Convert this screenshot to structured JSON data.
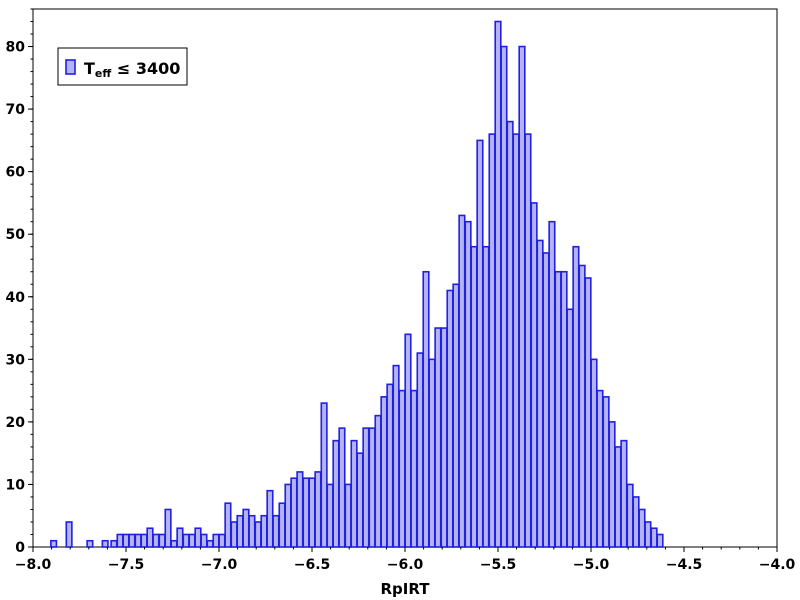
{
  "chart_data": {
    "type": "bar",
    "title": "",
    "xlabel": "RpIRT",
    "ylabel": "",
    "xlim": [
      -8.0,
      -4.0
    ],
    "ylim": [
      0,
      86
    ],
    "bin_width": 0.03,
    "x_ticks": [
      -8.0,
      -7.5,
      -7.0,
      -6.5,
      -6.0,
      -5.5,
      -5.0,
      -4.5,
      -4.0
    ],
    "x_tick_labels": [
      "−8.0",
      "−7.5",
      "−7.0",
      "−6.5",
      "−6.0",
      "−5.5",
      "−5.0",
      "−4.5",
      "−4.0"
    ],
    "y_ticks": [
      0,
      10,
      20,
      30,
      40,
      50,
      60,
      70,
      80
    ],
    "y_tick_labels": [
      "0",
      "10",
      "20",
      "30",
      "40",
      "50",
      "60",
      "70",
      "80"
    ],
    "grid": false,
    "legend_position": "top-left",
    "legend": {
      "main": "T",
      "sub": "eff",
      "rest": " ≤ 3400"
    },
    "colors": {
      "fill": "#b3b3f5",
      "edge": "#2020e0"
    },
    "series": [
      {
        "name": "Teff ≤ 3400",
        "values": [
          [
            -7.889,
            1
          ],
          [
            -7.806,
            4
          ],
          [
            -7.694,
            1
          ],
          [
            -7.612,
            1
          ],
          [
            -7.565,
            1
          ],
          [
            -7.532,
            2
          ],
          [
            -7.5,
            2
          ],
          [
            -7.468,
            2
          ],
          [
            -7.435,
            2
          ],
          [
            -7.403,
            2
          ],
          [
            -7.371,
            3
          ],
          [
            -7.339,
            2
          ],
          [
            -7.306,
            2
          ],
          [
            -7.274,
            6
          ],
          [
            -7.242,
            1
          ],
          [
            -7.21,
            3
          ],
          [
            -7.177,
            2
          ],
          [
            -7.145,
            2
          ],
          [
            -7.113,
            3
          ],
          [
            -7.081,
            2
          ],
          [
            -7.048,
            1
          ],
          [
            -7.016,
            2
          ],
          [
            -6.984,
            2
          ],
          [
            -6.952,
            7
          ],
          [
            -6.919,
            4
          ],
          [
            -6.887,
            5
          ],
          [
            -6.855,
            6
          ],
          [
            -6.823,
            5
          ],
          [
            -6.79,
            4
          ],
          [
            -6.758,
            5
          ],
          [
            -6.726,
            9
          ],
          [
            -6.694,
            5
          ],
          [
            -6.661,
            7
          ],
          [
            -6.629,
            10
          ],
          [
            -6.597,
            11
          ],
          [
            -6.565,
            12
          ],
          [
            -6.532,
            11
          ],
          [
            -6.5,
            11
          ],
          [
            -6.468,
            12
          ],
          [
            -6.435,
            23
          ],
          [
            -6.403,
            10
          ],
          [
            -6.371,
            17
          ],
          [
            -6.339,
            19
          ],
          [
            -6.306,
            10
          ],
          [
            -6.274,
            17
          ],
          [
            -6.242,
            15
          ],
          [
            -6.21,
            19
          ],
          [
            -6.177,
            19
          ],
          [
            -6.145,
            21
          ],
          [
            -6.113,
            24
          ],
          [
            -6.081,
            26
          ],
          [
            -6.048,
            29
          ],
          [
            -6.016,
            25
          ],
          [
            -5.984,
            34
          ],
          [
            -5.952,
            25
          ],
          [
            -5.919,
            31
          ],
          [
            -5.887,
            44
          ],
          [
            -5.855,
            30
          ],
          [
            -5.823,
            35
          ],
          [
            -5.79,
            35
          ],
          [
            -5.758,
            41
          ],
          [
            -5.726,
            42
          ],
          [
            -5.694,
            53
          ],
          [
            -5.661,
            52
          ],
          [
            -5.629,
            48
          ],
          [
            -5.597,
            65
          ],
          [
            -5.565,
            48
          ],
          [
            -5.532,
            66
          ],
          [
            -5.5,
            84
          ],
          [
            -5.468,
            80
          ],
          [
            -5.435,
            68
          ],
          [
            -5.403,
            66
          ],
          [
            -5.371,
            80
          ],
          [
            -5.339,
            66
          ],
          [
            -5.306,
            55
          ],
          [
            -5.274,
            49
          ],
          [
            -5.242,
            47
          ],
          [
            -5.21,
            52
          ],
          [
            -5.177,
            44
          ],
          [
            -5.145,
            44
          ],
          [
            -5.113,
            38
          ],
          [
            -5.081,
            48
          ],
          [
            -5.048,
            45
          ],
          [
            -5.016,
            43
          ],
          [
            -4.984,
            30
          ],
          [
            -4.952,
            25
          ],
          [
            -4.919,
            24
          ],
          [
            -4.887,
            20
          ],
          [
            -4.855,
            16
          ],
          [
            -4.823,
            17
          ],
          [
            -4.79,
            10
          ],
          [
            -4.758,
            8
          ],
          [
            -4.726,
            6
          ],
          [
            -4.694,
            4
          ],
          [
            -4.661,
            3
          ],
          [
            -4.629,
            2
          ]
        ]
      }
    ]
  }
}
